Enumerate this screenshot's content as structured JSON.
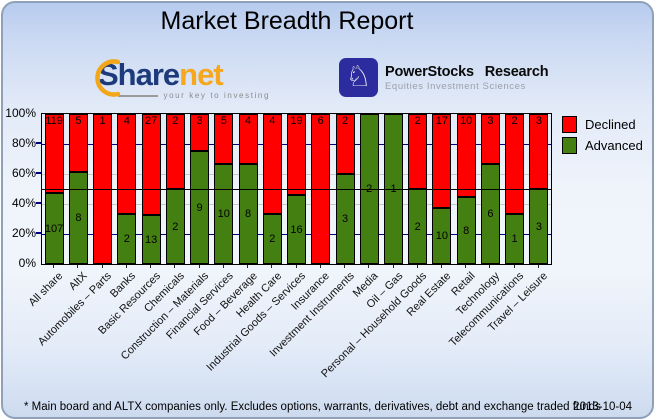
{
  "title": "Market Breadth Report",
  "logos": {
    "sharenet": {
      "text_primary": "Share",
      "text_secondary": "net",
      "tagline": "your key to investing"
    },
    "powerstocks": {
      "icon_glyph": "♘",
      "name": "PowerStocks Research",
      "tagline": "Equities Investment Sciences"
    }
  },
  "chart_data": {
    "type": "bar",
    "stacked": true,
    "unit": "percent of companies advancing vs declining",
    "categories": [
      "All share",
      "AltX",
      "Automobiles – Parts",
      "Banks",
      "Basic Resources",
      "Chemicals",
      "Construction – Materials",
      "Financial Services",
      "Food – Beverage",
      "Health Care",
      "Industrial Goods – Services",
      "Insurance",
      "Investment Instruments",
      "Media",
      "Oil – Gas",
      "Personal – Household Goods",
      "Real Estate",
      "Retail",
      "Technology",
      "Telecommunications",
      "Travel – Leisure"
    ],
    "series": [
      {
        "name": "Declined",
        "color": "#ff0000",
        "values": [
          119,
          5,
          1,
          4,
          27,
          2,
          3,
          5,
          4,
          4,
          19,
          6,
          2,
          0,
          0,
          2,
          17,
          10,
          3,
          2,
          3
        ]
      },
      {
        "name": "Advanced",
        "color": "#448011",
        "values": [
          107,
          8,
          0,
          2,
          13,
          2,
          9,
          10,
          8,
          2,
          16,
          0,
          3,
          2,
          1,
          2,
          10,
          8,
          6,
          1,
          3
        ]
      }
    ],
    "y_tick_labels": [
      "0%",
      "20%",
      "40%",
      "60%",
      "80%",
      "100%"
    ],
    "ylim": [
      0,
      100
    ],
    "reference_line_pct": 50,
    "gridlines": [
      {
        "pct": 20,
        "color": "#000080"
      },
      {
        "pct": 40,
        "color": "#c8c8c8"
      },
      {
        "pct": 60,
        "color": "#c8c8c8"
      },
      {
        "pct": 80,
        "color": "#000080"
      }
    ],
    "legend_position": "top-right"
  },
  "footer": {
    "note": "* Main board and ALTX companies only. Excludes options, warrants, derivatives, debt and exchange traded funds",
    "date": "2013-10-04"
  }
}
